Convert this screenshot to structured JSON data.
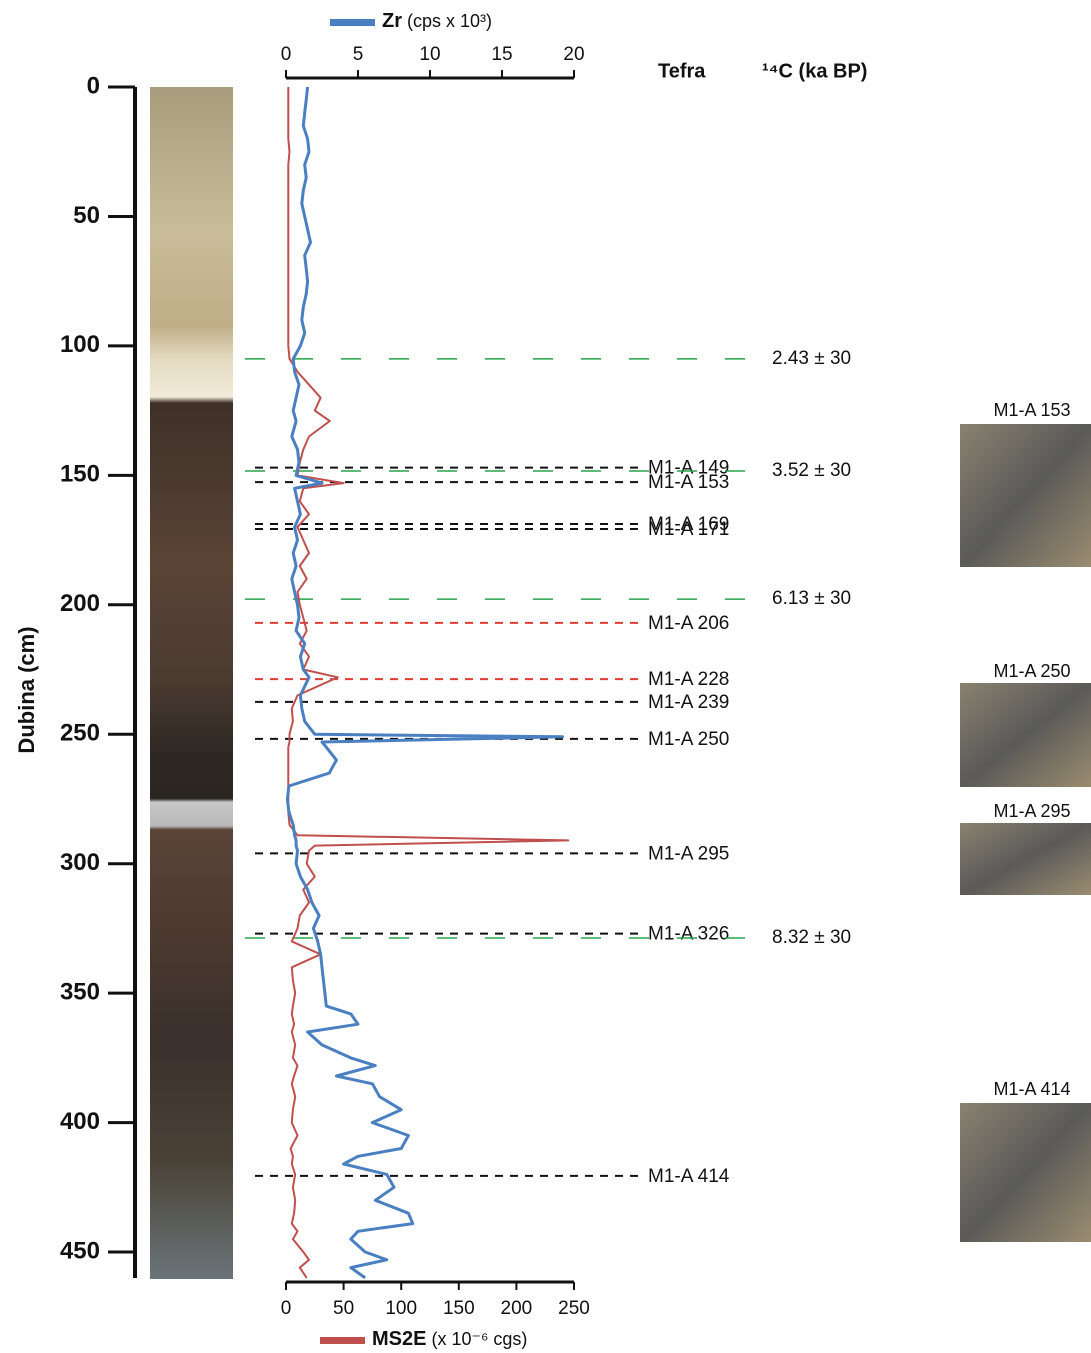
{
  "chart_data": {
    "type": "line",
    "y_label": "Dubina (cm)",
    "ylim": [
      0,
      460
    ],
    "yticks": [
      0,
      50,
      100,
      150,
      200,
      250,
      300,
      350,
      400,
      450
    ],
    "xlim": [
      0,
      20
    ],
    "xticks": [
      0,
      5,
      10,
      15,
      20
    ],
    "x2lim": [
      0,
      250
    ],
    "x2ticks": [
      0,
      50,
      100,
      150,
      200,
      250
    ],
    "depth": [
      0,
      5,
      10,
      15,
      20,
      25,
      30,
      35,
      40,
      45,
      50,
      55,
      60,
      65,
      70,
      75,
      80,
      85,
      90,
      95,
      100,
      105,
      110,
      115,
      120,
      125,
      129,
      135,
      140,
      145,
      150,
      153,
      155,
      160,
      165,
      170,
      175,
      180,
      185,
      190,
      195,
      200,
      205,
      210,
      215,
      220,
      225,
      228,
      235,
      240,
      245,
      250,
      251,
      253,
      255,
      260,
      265,
      270,
      275,
      280,
      285,
      289,
      291,
      293,
      295,
      300,
      305,
      310,
      315,
      320,
      325,
      330,
      335,
      340,
      345,
      350,
      355,
      358,
      362,
      365,
      370,
      375,
      378,
      382,
      385,
      390,
      395,
      400,
      405,
      410,
      413,
      416,
      420,
      425,
      430,
      435,
      439,
      442,
      445,
      450,
      453,
      456,
      460
    ],
    "series": [
      {
        "name": "Zr",
        "unit": "(cps x 10³)",
        "color": "#4a7fc1",
        "axis": "x",
        "values": [
          1.5,
          1.4,
          1.3,
          1.2,
          1.5,
          1.6,
          1.3,
          1.4,
          1.2,
          1.1,
          1.3,
          1.5,
          1.7,
          1.3,
          1.4,
          1.5,
          1.4,
          1.2,
          1.1,
          1.3,
          1.0,
          0.5,
          0.6,
          0.9,
          0.7,
          0.5,
          0.7,
          0.4,
          0.8,
          0.9,
          0.7,
          2.5,
          0.6,
          0.8,
          1.0,
          0.6,
          0.8,
          0.5,
          0.7,
          0.4,
          0.6,
          0.8,
          0.9,
          0.7,
          1.3,
          1.0,
          1.2,
          1.6,
          1.0,
          1.1,
          1.3,
          2.0,
          19.2,
          2.5,
          2.8,
          3.5,
          3.0,
          0.2,
          0.1,
          0.2,
          0.5,
          0.6,
          0.7,
          0.7,
          0.8,
          0.7,
          1.0,
          1.5,
          1.8,
          2.3,
          1.9,
          2.2,
          2.4,
          2.5,
          2.6,
          2.7,
          2.8,
          4.5,
          5.0,
          1.5,
          2.5,
          4.5,
          6.2,
          3.5,
          6.0,
          6.5,
          8.0,
          6.0,
          8.5,
          8.0,
          5.0,
          4.0,
          7.0,
          7.5,
          6.2,
          8.5,
          8.8,
          5.0,
          4.5,
          5.5,
          7.0,
          4.5,
          5.5
        ]
      },
      {
        "name": "MS2E",
        "unit": "(x 10⁻⁶ cgs)",
        "color": "#c0504d",
        "axis": "x2",
        "values": [
          2,
          2,
          2,
          2,
          2,
          3,
          2,
          2,
          2,
          2,
          2,
          2,
          2,
          2,
          2,
          2,
          2,
          2,
          2,
          2,
          2,
          3,
          10,
          20,
          30,
          25,
          38,
          20,
          15,
          12,
          10,
          50,
          15,
          12,
          20,
          10,
          15,
          20,
          12,
          18,
          10,
          12,
          15,
          18,
          12,
          20,
          15,
          45,
          10,
          5,
          6,
          3,
          3,
          3,
          2,
          2,
          2,
          2,
          2,
          2,
          3,
          10,
          245,
          25,
          20,
          18,
          25,
          15,
          20,
          12,
          10,
          5,
          30,
          5,
          6,
          8,
          6,
          5,
          7,
          5,
          8,
          6,
          10,
          7,
          5,
          8,
          6,
          5,
          10,
          4,
          6,
          5,
          8,
          6,
          8,
          7,
          5,
          10,
          6,
          15,
          20,
          12,
          18
        ]
      }
    ],
    "tephra": {
      "title": "Tefra",
      "layers": [
        {
          "label": "M1-A 149",
          "depth": 147,
          "color": "#111111"
        },
        {
          "label": "M1-A 153",
          "depth": 152.6,
          "color": "#111111"
        },
        {
          "label": "M1-A 169",
          "depth": 168.8,
          "color": "#111111"
        },
        {
          "label": "M1-A 171",
          "depth": 170.7,
          "color": "#111111"
        },
        {
          "label": "M1-A 206",
          "depth": 207,
          "color": "#e03c31"
        },
        {
          "label": "M1-A 228",
          "depth": 228.7,
          "color": "#e03c31"
        },
        {
          "label": "M1-A 239",
          "depth": 237.5,
          "color": "#111111"
        },
        {
          "label": "M1-A 250",
          "depth": 251.8,
          "color": "#111111"
        },
        {
          "label": "M1-A 295",
          "depth": 296,
          "color": "#111111"
        },
        {
          "label": "M1-A 326",
          "depth": 327,
          "color": "#111111"
        },
        {
          "label": "M1-A 414",
          "depth": 420.6,
          "color": "#111111"
        }
      ]
    },
    "radiocarbon": {
      "title": "¹⁴C (ka BP)",
      "color": "#2aa34a",
      "dates": [
        {
          "label": "2.43 ± 30",
          "depth": 105
        },
        {
          "label": "3.52 ± 30",
          "depth": 148.3
        },
        {
          "label": "6.13 ± 30",
          "depth": 197.8
        },
        {
          "label": "8.32 ± 30",
          "depth": 328.7
        }
      ]
    },
    "photos": [
      "M1-A 153",
      "M1-A 250",
      "M1-A 295",
      "M1-A 414"
    ]
  }
}
